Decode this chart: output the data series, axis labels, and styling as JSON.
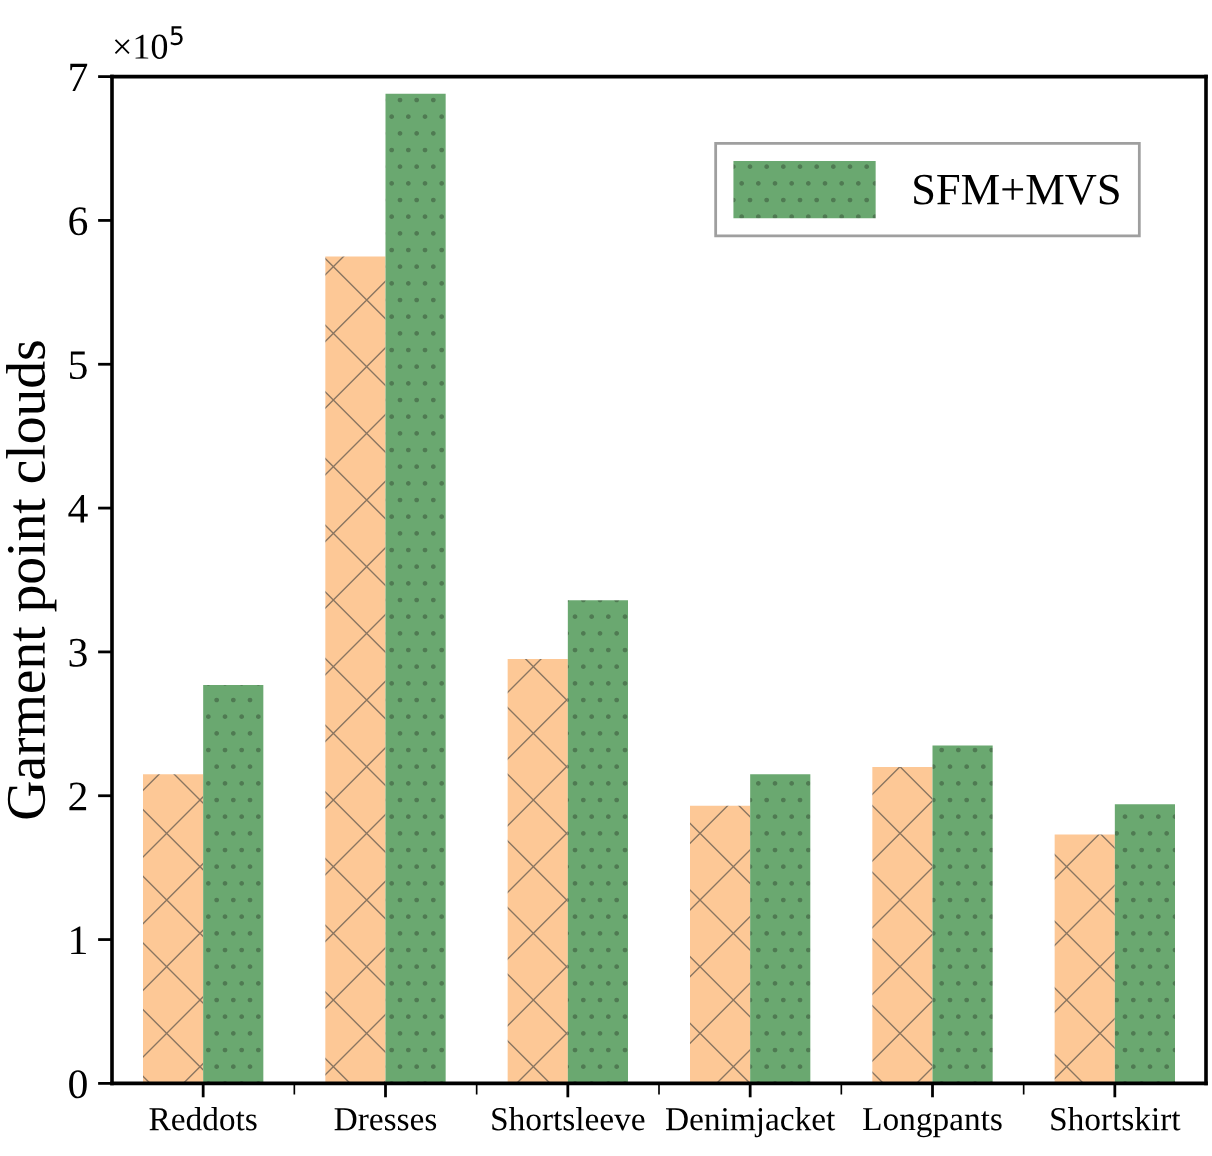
{
  "chart_data": {
    "type": "bar",
    "ylabel": "Garment point clouds",
    "categories": [
      "Reddots",
      "Dresses",
      "Shortsleeve",
      "Denimjacket",
      "Longpants",
      "Shortskirt"
    ],
    "series": [
      {
        "color": "#fdc896",
        "values": [
          2.15,
          5.75,
          2.95,
          1.93,
          2.2,
          1.73
        ]
      },
      {
        "name": "SFM+MVS",
        "color": "#6aa870",
        "values": [
          2.77,
          6.88,
          3.36,
          2.15,
          2.35,
          1.94
        ]
      }
    ],
    "ylim": [
      0,
      7
    ],
    "yticks": [
      0,
      1,
      2,
      3,
      4,
      5,
      6,
      7
    ],
    "grid": false,
    "legend": "top right",
    "annotations": [
      "×10$^{5}$"
    ]
  }
}
